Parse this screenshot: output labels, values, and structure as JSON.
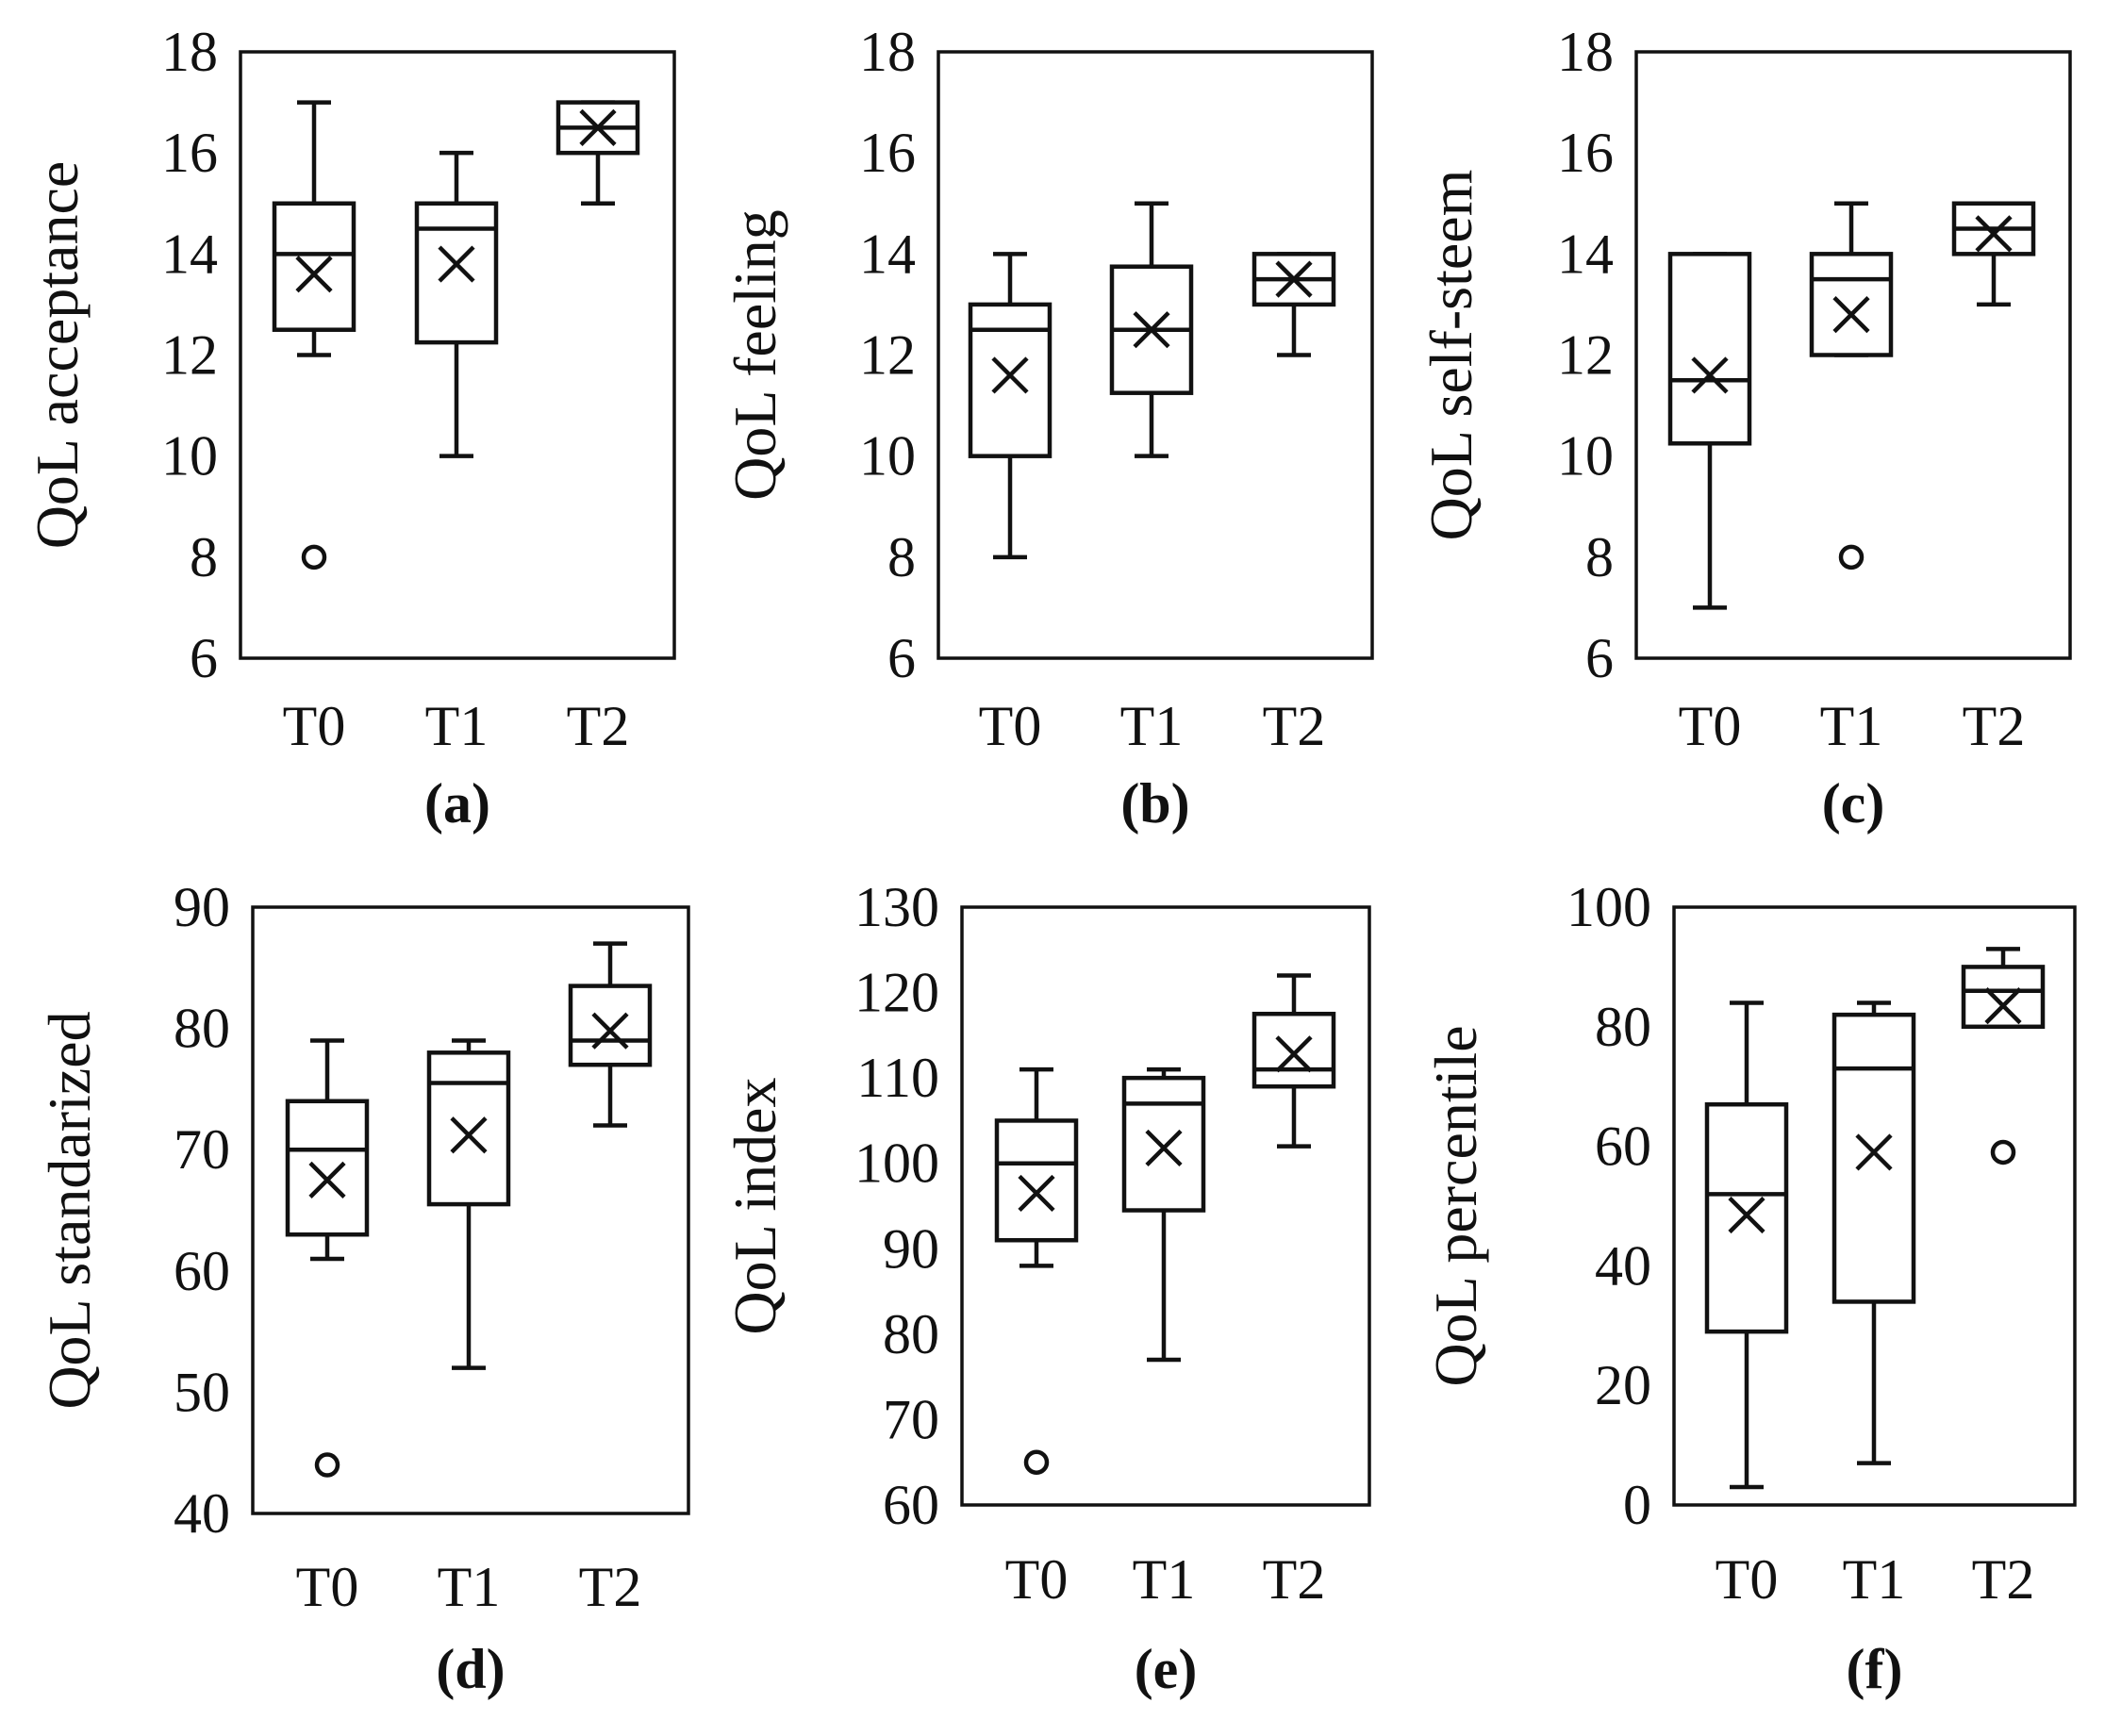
{
  "chart_data": [
    {
      "type": "box",
      "panel": "(a)",
      "ylabel": "QoL acceptance",
      "ylim": [
        6,
        18
      ],
      "yticks": [
        6,
        8,
        10,
        12,
        14,
        16,
        18
      ],
      "categories": [
        "T0",
        "T1",
        "T2"
      ],
      "boxes": [
        {
          "whisker_low": 12,
          "q1": 12.5,
          "median": 14,
          "q3": 15,
          "whisker_high": 17,
          "mean": 13.6,
          "outliers": [
            8
          ]
        },
        {
          "whisker_low": 10,
          "q1": 12.25,
          "median": 14.5,
          "q3": 15,
          "whisker_high": 16,
          "mean": 13.8,
          "outliers": []
        },
        {
          "whisker_low": 15,
          "q1": 16,
          "median": 16.5,
          "q3": 17,
          "whisker_high": 17,
          "mean": 16.5,
          "outliers": []
        }
      ]
    },
    {
      "type": "box",
      "panel": "(b)",
      "ylabel": "QoL feeling",
      "ylim": [
        6,
        18
      ],
      "yticks": [
        6,
        8,
        10,
        12,
        14,
        16,
        18
      ],
      "categories": [
        "T0",
        "T1",
        "T2"
      ],
      "boxes": [
        {
          "whisker_low": 8,
          "q1": 10,
          "median": 12.5,
          "q3": 13,
          "whisker_high": 14,
          "mean": 11.6,
          "outliers": []
        },
        {
          "whisker_low": 10,
          "q1": 11.25,
          "median": 12.5,
          "q3": 13.75,
          "whisker_high": 15,
          "mean": 12.5,
          "outliers": []
        },
        {
          "whisker_low": 12,
          "q1": 13,
          "median": 13.5,
          "q3": 14,
          "whisker_high": 14,
          "mean": 13.5,
          "outliers": []
        }
      ]
    },
    {
      "type": "box",
      "panel": "(c)",
      "ylabel": "QoL self-steem",
      "ylim": [
        6,
        18
      ],
      "yticks": [
        6,
        8,
        10,
        12,
        14,
        16,
        18
      ],
      "categories": [
        "T0",
        "T1",
        "T2"
      ],
      "boxes": [
        {
          "whisker_low": 7,
          "q1": 10.25,
          "median": 11.5,
          "q3": 14,
          "whisker_high": 14,
          "mean": 11.6,
          "outliers": []
        },
        {
          "whisker_low": 12,
          "q1": 12,
          "median": 13.5,
          "q3": 14,
          "whisker_high": 15,
          "mean": 12.8,
          "outliers": [
            8
          ]
        },
        {
          "whisker_low": 13,
          "q1": 14,
          "median": 14.5,
          "q3": 15,
          "whisker_high": 15,
          "mean": 14.4,
          "outliers": []
        }
      ]
    },
    {
      "type": "box",
      "panel": "(d)",
      "ylabel": "QoL standarized",
      "ylim": [
        40,
        90
      ],
      "yticks": [
        40,
        50,
        60,
        70,
        80,
        90
      ],
      "categories": [
        "T0",
        "T1",
        "T2"
      ],
      "boxes": [
        {
          "whisker_low": 61,
          "q1": 63,
          "median": 70,
          "q3": 74,
          "whisker_high": 79,
          "mean": 67.5,
          "outliers": [
            44
          ]
        },
        {
          "whisker_low": 52,
          "q1": 65.5,
          "median": 75.5,
          "q3": 78,
          "whisker_high": 79,
          "mean": 71.2,
          "outliers": []
        },
        {
          "whisker_low": 72,
          "q1": 77,
          "median": 79,
          "q3": 83.5,
          "whisker_high": 87,
          "mean": 79.8,
          "outliers": []
        }
      ]
    },
    {
      "type": "box",
      "panel": "(e)",
      "ylabel": "QoL index",
      "ylim": [
        60,
        130
      ],
      "yticks": [
        60,
        70,
        80,
        90,
        100,
        110,
        120,
        130
      ],
      "categories": [
        "T0",
        "T1",
        "T2"
      ],
      "boxes": [
        {
          "whisker_low": 88,
          "q1": 91,
          "median": 100,
          "q3": 105,
          "whisker_high": 111,
          "mean": 96.5,
          "outliers": [
            65
          ]
        },
        {
          "whisker_low": 77,
          "q1": 94.5,
          "median": 107,
          "q3": 110,
          "whisker_high": 111,
          "mean": 101.8,
          "outliers": []
        },
        {
          "whisker_low": 102,
          "q1": 109,
          "median": 111,
          "q3": 117.5,
          "whisker_high": 122,
          "mean": 112.8,
          "outliers": []
        }
      ]
    },
    {
      "type": "box",
      "panel": "(f)",
      "ylabel": "QoL percentile",
      "ylim": [
        0,
        100
      ],
      "yticks": [
        0,
        20,
        40,
        60,
        80,
        100
      ],
      "categories": [
        "T0",
        "T1",
        "T2"
      ],
      "boxes": [
        {
          "whisker_low": 3,
          "q1": 29,
          "median": 52,
          "q3": 67,
          "whisker_high": 84,
          "mean": 48.5,
          "outliers": []
        },
        {
          "whisker_low": 7,
          "q1": 34,
          "median": 73,
          "q3": 82,
          "whisker_high": 84,
          "mean": 59,
          "outliers": []
        },
        {
          "whisker_low": 80,
          "q1": 80,
          "median": 86,
          "q3": 90,
          "whisker_high": 93,
          "mean": 83.5,
          "outliers": [
            59
          ]
        }
      ]
    }
  ]
}
